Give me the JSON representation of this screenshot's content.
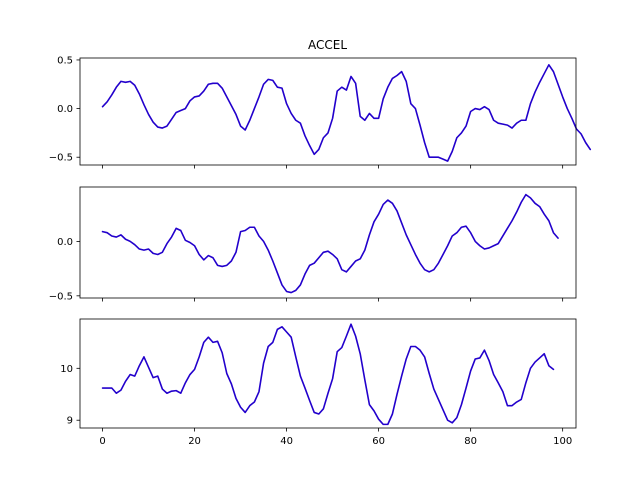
{
  "title": "ACCEL",
  "colors": {
    "series": "#2200cc",
    "axis": "#000000",
    "background": "#ffffff"
  },
  "chart_data": [
    {
      "type": "line",
      "title": "ACCEL",
      "xlim": [
        -4.9,
        102.9
      ],
      "ylim": [
        -0.58,
        0.52
      ],
      "xticks": [
        0,
        20,
        40,
        60,
        80,
        100
      ],
      "xtick_labels_visible": false,
      "yticks": [
        -0.5,
        0.0,
        0.5
      ],
      "ytick_labels": [
        "−0.5",
        "0.0",
        "0.5"
      ],
      "grid": false,
      "series": [
        {
          "values": [
            0.02,
            0.07,
            0.14,
            0.22,
            0.28,
            0.27,
            0.28,
            0.24,
            0.15,
            0.04,
            -0.06,
            -0.14,
            -0.19,
            -0.2,
            -0.18,
            -0.11,
            -0.04,
            -0.02,
            0.0,
            0.08,
            0.12,
            0.13,
            0.18,
            0.25,
            0.26,
            0.26,
            0.21,
            0.12,
            0.03,
            -0.06,
            -0.18,
            -0.22,
            -0.12,
            0.0,
            0.12,
            0.25,
            0.3,
            0.29,
            0.22,
            0.21,
            0.05,
            -0.05,
            -0.12,
            -0.15,
            -0.28,
            -0.38,
            -0.47,
            -0.42,
            -0.3,
            -0.25,
            -0.1,
            0.18,
            0.22,
            0.19,
            0.33,
            0.26,
            -0.08,
            -0.12,
            -0.05,
            -0.1,
            -0.1,
            0.1,
            0.22,
            0.31,
            0.34,
            0.38,
            0.28,
            0.05,
            0.0,
            -0.17,
            -0.35,
            -0.5,
            -0.5,
            -0.5,
            -0.52,
            -0.54,
            -0.44,
            -0.3,
            -0.25,
            -0.18,
            -0.03,
            0.0,
            -0.01,
            0.02,
            -0.01,
            -0.12,
            -0.15,
            -0.16,
            -0.17,
            -0.2,
            -0.15,
            -0.12,
            -0.12,
            0.05,
            0.17,
            0.27,
            0.36,
            0.45,
            0.38,
            0.25,
            0.12,
            0.0,
            -0.1,
            -0.21,
            -0.26,
            -0.35,
            -0.42
          ]
        }
      ]
    },
    {
      "type": "line",
      "xlim": [
        -4.9,
        102.9
      ],
      "ylim": [
        -0.52,
        0.5
      ],
      "xticks": [
        0,
        20,
        40,
        60,
        80,
        100
      ],
      "xtick_labels_visible": false,
      "yticks": [
        -0.5,
        0.0
      ],
      "ytick_labels": [
        "−0.5",
        "0.0"
      ],
      "grid": false,
      "series": [
        {
          "values": [
            0.09,
            0.08,
            0.05,
            0.04,
            0.06,
            0.02,
            0.0,
            -0.03,
            -0.07,
            -0.08,
            -0.07,
            -0.11,
            -0.12,
            -0.1,
            -0.02,
            0.04,
            0.12,
            0.1,
            0.01,
            -0.01,
            -0.04,
            -0.12,
            -0.17,
            -0.13,
            -0.15,
            -0.22,
            -0.23,
            -0.22,
            -0.18,
            -0.1,
            0.09,
            0.1,
            0.13,
            0.13,
            0.05,
            0.0,
            -0.08,
            -0.18,
            -0.29,
            -0.4,
            -0.46,
            -0.47,
            -0.45,
            -0.4,
            -0.3,
            -0.22,
            -0.2,
            -0.15,
            -0.1,
            -0.09,
            -0.12,
            -0.16,
            -0.26,
            -0.28,
            -0.23,
            -0.18,
            -0.16,
            -0.08,
            0.06,
            0.18,
            0.25,
            0.34,
            0.38,
            0.35,
            0.28,
            0.17,
            0.06,
            -0.03,
            -0.12,
            -0.2,
            -0.26,
            -0.28,
            -0.26,
            -0.2,
            -0.12,
            -0.04,
            0.05,
            0.08,
            0.13,
            0.14,
            0.08,
            0.0,
            -0.04,
            -0.07,
            -0.06,
            -0.04,
            -0.02,
            0.05,
            0.12,
            0.19,
            0.27,
            0.36,
            0.43,
            0.4,
            0.35,
            0.32,
            0.25,
            0.19,
            0.08,
            0.03
          ]
        }
      ]
    },
    {
      "type": "line",
      "xlim": [
        -4.9,
        102.9
      ],
      "ylim": [
        8.85,
        10.95
      ],
      "xticks": [
        0,
        20,
        40,
        60,
        80,
        100
      ],
      "xtick_labels": [
        "0",
        "20",
        "40",
        "60",
        "80",
        "100"
      ],
      "yticks": [
        9,
        10
      ],
      "ytick_labels": [
        "9",
        "10"
      ],
      "grid": false,
      "series": [
        {
          "values": [
            9.62,
            9.62,
            9.62,
            9.52,
            9.58,
            9.75,
            9.88,
            9.85,
            10.05,
            10.22,
            10.02,
            9.82,
            9.85,
            9.6,
            9.52,
            9.56,
            9.57,
            9.52,
            9.72,
            9.88,
            9.98,
            10.22,
            10.5,
            10.6,
            10.5,
            10.52,
            10.3,
            9.9,
            9.7,
            9.42,
            9.25,
            9.15,
            9.28,
            9.35,
            9.55,
            10.1,
            10.42,
            10.5,
            10.75,
            10.8,
            10.7,
            10.6,
            10.22,
            9.85,
            9.62,
            9.38,
            9.15,
            9.12,
            9.22,
            9.52,
            9.8,
            10.32,
            10.4,
            10.62,
            10.85,
            10.62,
            10.28,
            9.78,
            9.3,
            9.18,
            9.02,
            8.92,
            8.92,
            9.12,
            9.5,
            9.85,
            10.18,
            10.42,
            10.42,
            10.35,
            10.22,
            9.9,
            9.6,
            9.4,
            9.2,
            9.0,
            8.95,
            9.05,
            9.3,
            9.62,
            9.95,
            10.18,
            10.2,
            10.35,
            10.15,
            9.88,
            9.72,
            9.55,
            9.28,
            9.28,
            9.35,
            9.4,
            9.72,
            10.0,
            10.12,
            10.2,
            10.28,
            10.05,
            9.98
          ]
        }
      ]
    }
  ]
}
